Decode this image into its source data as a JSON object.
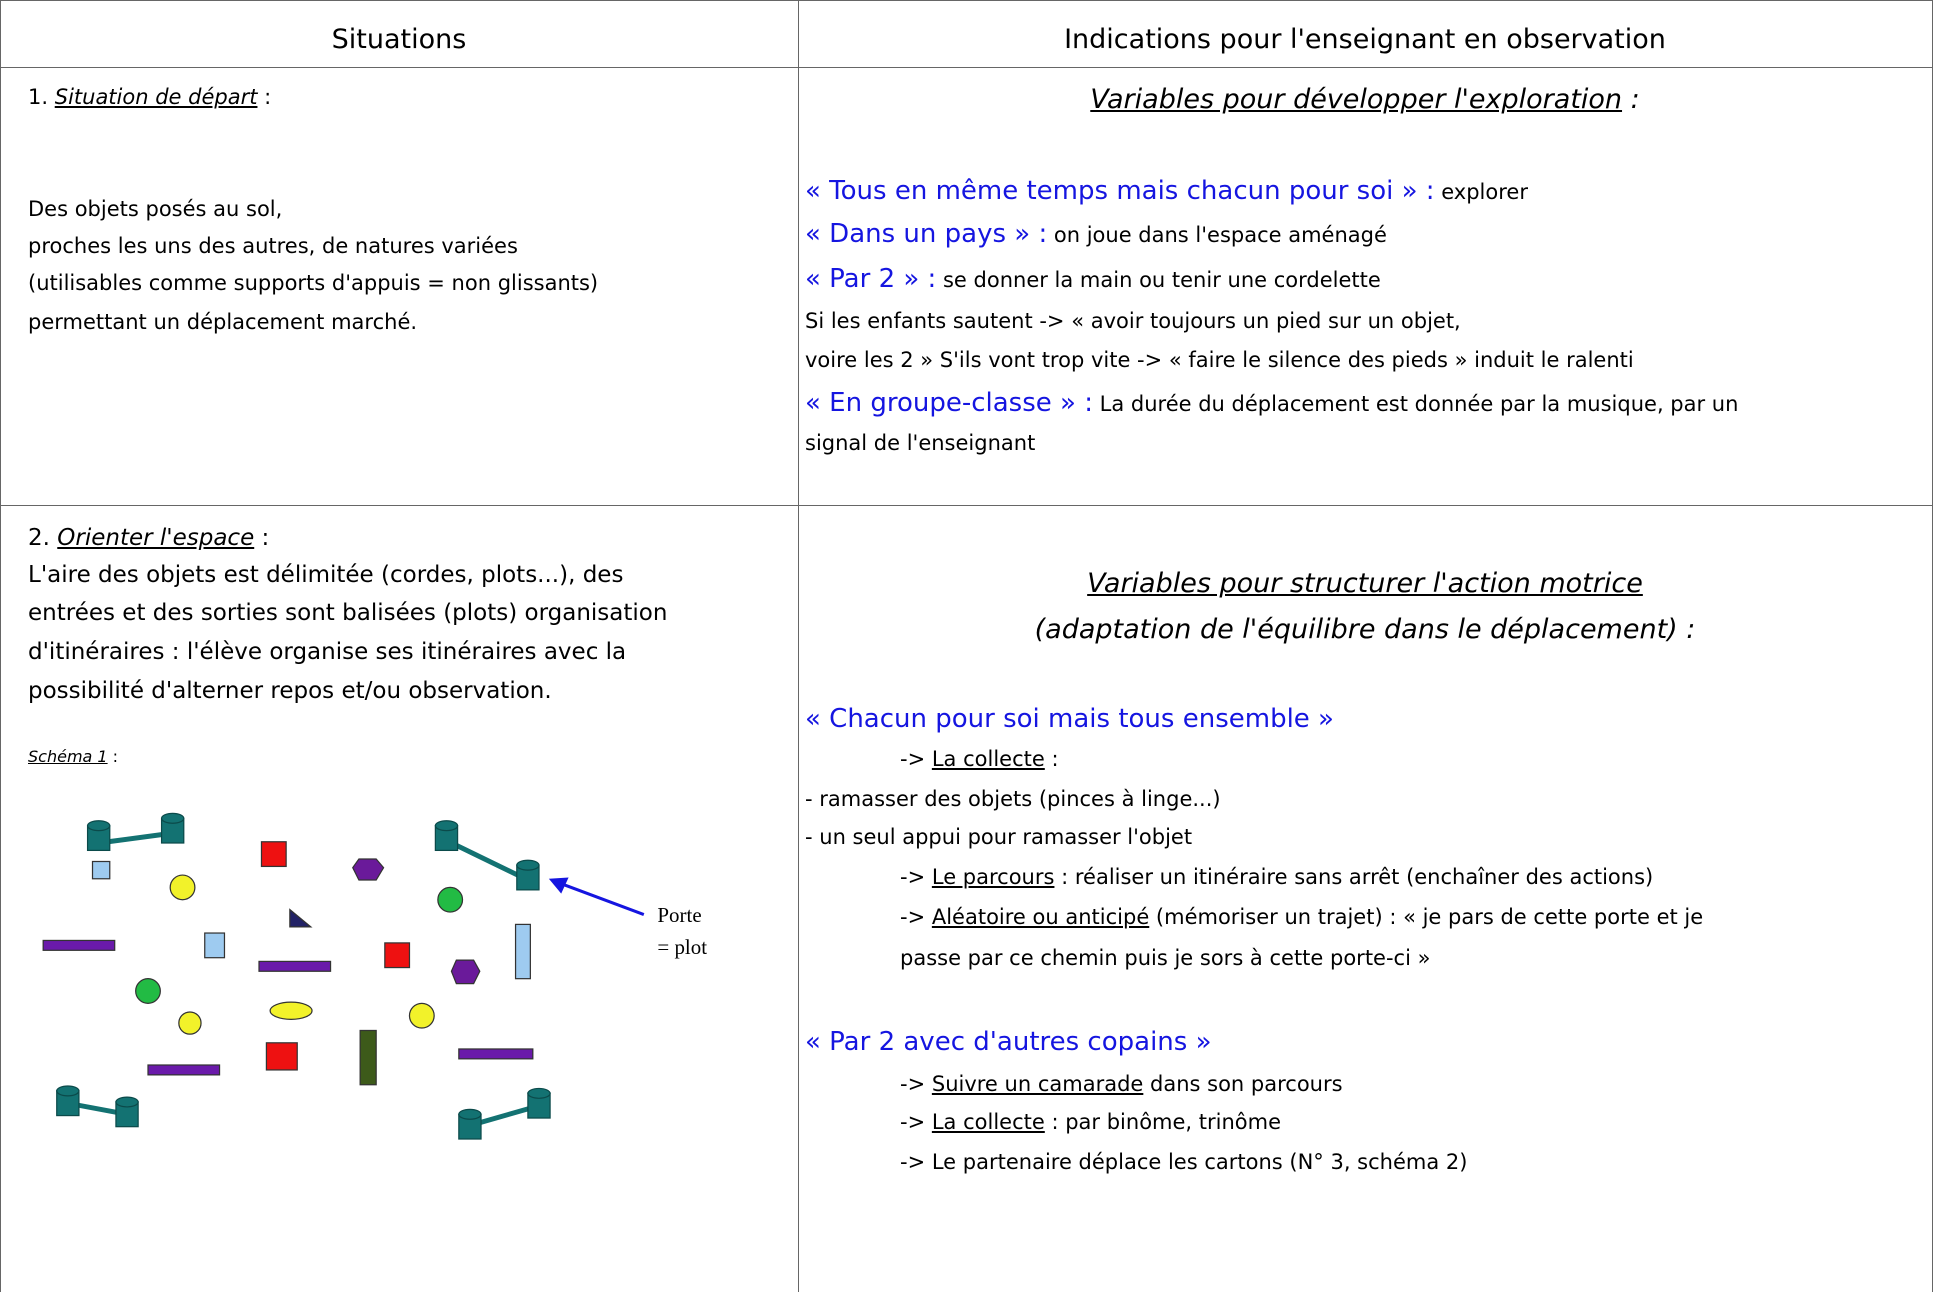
{
  "table": {
    "header": [
      "Situations",
      "Indications pour l'enseignant en observation"
    ],
    "rows": [
      {
        "situation": {
          "number": "1.",
          "title": "Situation de départ",
          "after_title": " :",
          "lines": [
            "Des objets posés au sol,",
            "proches les uns des autres, de natures variées",
            "(utilisables comme supports d'appuis = non glissants)",
            "permettant un déplacement marché."
          ]
        },
        "indications": {
          "heading": "Variables pour développer l'exploration",
          "heading_after": " :",
          "lines": [
            [
              "« Tous en même temps mais chacun pour soi » :",
              " explorer"
            ],
            [
              "« Dans un pays » :",
              " on joue dans l'espace aménagé"
            ],
            [
              "« Par 2 » :",
              " se donner la main ou tenir une cordelette"
            ],
            [
              "Si les enfants sautent -> « avoir toujours un pied sur un objet,"
            ],
            [
              "voire les 2 »  S'ils vont trop vite -> « faire le silence des pieds » induit le ralenti"
            ],
            [
              "« En groupe-classe » :",
              " La durée du déplacement est donnée par la musique, par un"
            ],
            [
              "signal de l'enseignant"
            ]
          ]
        }
      },
      {
        "situation": {
          "number": "2.",
          "title": "Orienter l'espace",
          "after_title": " :",
          "lines": [
            "L'aire des objets est délimitée (cordes, plots...), des",
            "entrées et des sorties sont balisées (plots) organisation",
            "d'itinéraires : l'élève organise ses itinéraires avec la",
            "possibilité d'alterner repos et/ou observation."
          ],
          "schema": "Schéma 1",
          "schema_after": " :",
          "diagram_labels": [
            "Porte",
            "= plot"
          ]
        },
        "indications": {
          "heading": "Variables pour structurer l'action motrice",
          "heading2": "(adaptation de l'équilibre dans le déplacement) :",
          "lines": [
            [
              "« Chacun pour soi mais tous ensemble »"
            ],
            [
              "-> ",
              "La collecte",
              " :"
            ],
            [
              "- ramasser des objets (pinces à linge...)"
            ],
            [
              "- un seul appui pour ramasser l'objet"
            ],
            [
              "-> ",
              "Le parcours",
              " : réaliser un itinéraire sans arrêt (enchaîner des actions)"
            ],
            [
              "-> ",
              "Aléatoire ou anticipé",
              " (mémoriser un trajet) : « je pars de cette porte et je"
            ],
            [
              "passe par ce chemin puis je sors à cette porte-ci »"
            ],
            [
              "« Par 2 avec d'autres copains »"
            ],
            [
              "-> ",
              "Suivre un camarade",
              " dans son parcours"
            ],
            [
              "-> ",
              "La collecte",
              " : par binôme, trinôme"
            ],
            [
              "-> Le partenaire déplace les cartons (N° 3, schéma 2)"
            ]
          ]
        }
      }
    ]
  }
}
